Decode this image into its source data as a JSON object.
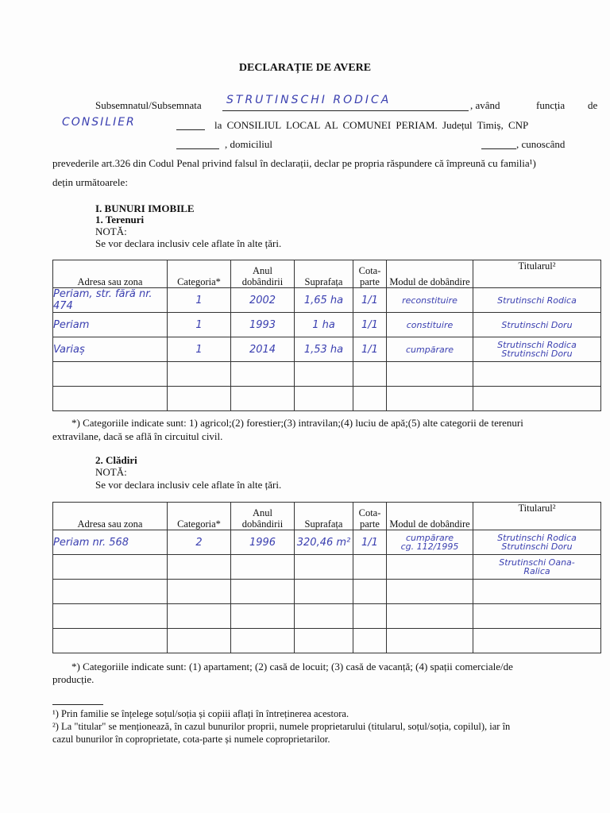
{
  "title": "DECLARAȚIE DE AVERE",
  "intro": {
    "l1a": "Subsemnatul/Subsemnata",
    "name": "STRUTINSCHI RODICA",
    "l1b": ", având",
    "l1c": "funcția",
    "l1d": "de",
    "function": "CONSILIER",
    "l2a": "la CONSILIUL LOCAL AL COMUNEI PERIAM. Județul Timiș, CNP",
    "l3a": ", domiciliul",
    "l3b": ", cunoscând",
    "l4": "prevederile art.326 din Codul Penal privind falsul în declarații, declar pe propria răspundere că împreună cu familia¹)",
    "l5": "dețin următoarele:"
  },
  "section1": {
    "heading": "I. BUNURI IMOBILE",
    "sub": "1. Terenuri",
    "nota": "NOTĂ:",
    "nota_text": "Se vor declara inclusiv cele aflate în alte țări."
  },
  "headers": [
    "Adresa sau zona",
    "Categoria*",
    "Anul dobândirii",
    "Suprafața",
    "Cota-parte",
    "Modul de dobândire",
    "Titularul²"
  ],
  "land_rows": [
    [
      "Periam, str. fără nr. 474",
      "1",
      "2002",
      "1,65 ha",
      "1/1",
      "reconstituire",
      "Strutinschi Rodica"
    ],
    [
      "Periam",
      "1",
      "1993",
      "1 ha",
      "1/1",
      "constituire",
      "Strutinschi Doru"
    ],
    [
      "Variaș",
      "1",
      "2014",
      "1,53 ha",
      "1/1",
      "cumpărare",
      "Strutinschi Rodica\nStrutinschi Doru"
    ],
    [
      "",
      "",
      "",
      "",
      "",
      "",
      ""
    ],
    [
      "",
      "",
      "",
      "",
      "",
      "",
      ""
    ]
  ],
  "land_note": "*) Categoriile indicate sunt: 1) agricol;(2) forestier;(3) intravilan;(4) luciu de apă;(5) alte categorii de terenuri",
  "land_note2": "extravilane, dacă se află în circuitul civil.",
  "section2": {
    "sub": "2. Clădiri",
    "nota": "NOTĂ:",
    "nota_text": "Se vor declara inclusiv cele aflate în alte țări."
  },
  "building_rows": [
    [
      "Periam nr. 568",
      "2",
      "1996",
      "320,46 m²",
      "1/1",
      "cumpărare\ncg. 112/1995",
      "Strutinschi Rodica\nStrutinschi Doru"
    ],
    [
      "",
      "",
      "",
      "",
      "",
      "",
      "Strutinschi Oana-\nRalica"
    ],
    [
      "",
      "",
      "",
      "",
      "",
      "",
      ""
    ],
    [
      "",
      "",
      "",
      "",
      "",
      "",
      ""
    ],
    [
      "",
      "",
      "",
      "",
      "",
      "",
      ""
    ]
  ],
  "building_note": "*) Categoriile indicate sunt: (1) apartament; (2) casă de locuit; (3) casă de vacanță; (4) spații comerciale/de",
  "building_note2": "producție.",
  "footnotes": [
    "¹) Prin familie se înțelege soțul/soția și copiii aflați în întreținerea acestora.",
    "²) La \"titular\" se menționează, în cazul bunurilor proprii, numele proprietarului (titularul, soțul/soția, copilul), iar în",
    "cazul bunurilor în coproprietate, cota-parte și numele coproprietarilor."
  ]
}
